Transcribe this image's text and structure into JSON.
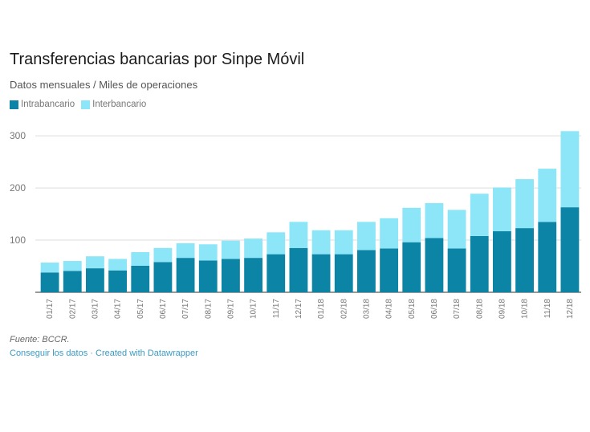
{
  "title": "Transferencias bancarias por Sinpe Móvil",
  "subtitle": "Datos mensuales / Miles de operaciones",
  "legend": [
    {
      "label": "Intrabancario",
      "color": "#0b84a5"
    },
    {
      "label": "Interbancario",
      "color": "#8de6f7"
    }
  ],
  "source": "Fuente: BCCR.",
  "links": {
    "data": "Conseguir los datos",
    "sep": " · ",
    "credit": "Created with Datawrapper"
  },
  "chart_data": {
    "type": "bar",
    "stacked": true,
    "categories": [
      "01/17",
      "02/17",
      "03/17",
      "04/17",
      "05/17",
      "06/17",
      "07/17",
      "08/17",
      "09/17",
      "10/17",
      "11/17",
      "12/17",
      "01/18",
      "02/18",
      "03/18",
      "04/18",
      "05/18",
      "06/18",
      "07/18",
      "08/18",
      "09/18",
      "10/18",
      "11/18",
      "12/18"
    ],
    "series": [
      {
        "name": "Intrabancario",
        "color": "#0b84a5",
        "values": [
          38,
          41,
          46,
          42,
          51,
          58,
          66,
          61,
          64,
          66,
          73,
          85,
          73,
          73,
          81,
          84,
          96,
          104,
          84,
          108,
          117,
          123,
          135,
          163
        ]
      },
      {
        "name": "Interbancario",
        "color": "#8de6f7",
        "values": [
          19,
          19,
          23,
          22,
          26,
          27,
          28,
          31,
          35,
          37,
          42,
          50,
          46,
          46,
          54,
          58,
          66,
          67,
          74,
          81,
          84,
          94,
          102,
          146
        ]
      }
    ],
    "yticks": [
      100,
      200,
      300
    ],
    "ylim": [
      0,
      320
    ],
    "grid": true,
    "legend_position": "top-left"
  }
}
